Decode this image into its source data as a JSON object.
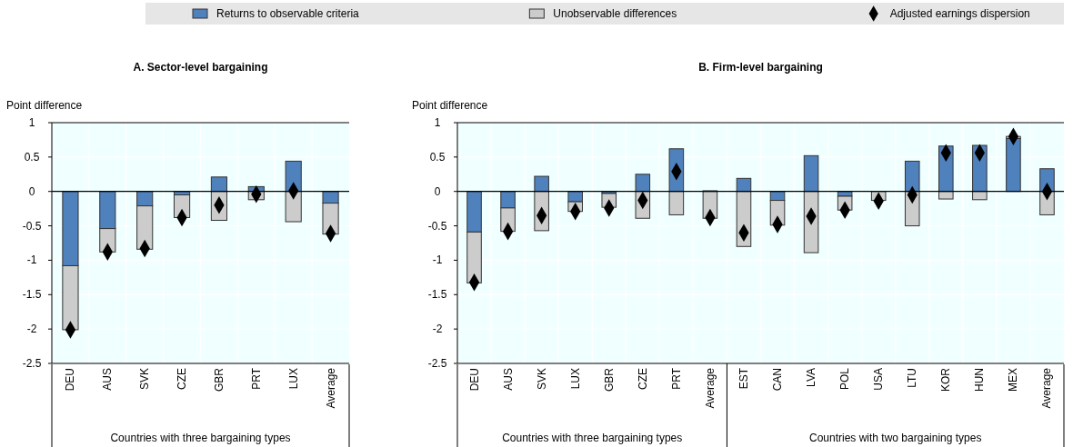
{
  "chart_data": [
    {
      "type": "bar",
      "title": "A. Sector-level bargaining",
      "ylabel": "Point difference",
      "xlabel": "Countries with three bargaining types",
      "stacked": true,
      "grid": true,
      "legend": "top",
      "categories": [
        "DEU",
        "AUS",
        "SVK",
        "CZE",
        "GBR",
        "PRT",
        "LUX",
        "Average"
      ],
      "ylim": [
        -2.5,
        1
      ],
      "yticks": [
        {
          "value": 1,
          "label": "1"
        },
        {
          "value": 0.5,
          "label": "0.5"
        },
        {
          "value": 0,
          "label": "0"
        },
        {
          "value": -0.5,
          "label": "-0.5"
        },
        {
          "value": -1,
          "label": "-1"
        },
        {
          "value": -1.5,
          "label": "-1.5"
        },
        {
          "value": -2,
          "label": "-2"
        },
        {
          "value": -2.5,
          "label": "-2.5"
        }
      ],
      "series": [
        {
          "name": "Returns to observable criteria",
          "color": "#4f81bd",
          "values": [
            -1.08,
            -0.54,
            -0.21,
            -0.05,
            0.21,
            0.07,
            0.44,
            -0.17
          ]
        },
        {
          "name": "Unobservable differences",
          "color": "#cccccc",
          "values": [
            -0.93,
            -0.34,
            -0.63,
            -0.33,
            -0.42,
            -0.12,
            -0.44,
            -0.45
          ]
        },
        {
          "name": "Adjusted earnings dispersion",
          "type": "scatter",
          "marker": "diamond",
          "color": "#000000",
          "values": [
            -2.01,
            -0.88,
            -0.83,
            -0.38,
            -0.2,
            -0.04,
            0.01,
            -0.61
          ]
        }
      ]
    },
    {
      "type": "bar",
      "title": "B. Firm-level bargaining",
      "ylabel": "Point difference",
      "stacked": true,
      "grid": true,
      "annotations": [
        "Countries with three bargaining types",
        "Countries with two bargaining types"
      ],
      "categories": [
        "DEU",
        "AUS",
        "SVK",
        "LUX",
        "GBR",
        "CZE",
        "PRT",
        "Average",
        "EST",
        "CAN",
        "LVA",
        "POL",
        "USA",
        "LTU",
        "KOR",
        "HUN",
        "MEX",
        "Average"
      ],
      "ylim": [
        -2.5,
        1
      ],
      "yticks": [
        {
          "value": 1,
          "label": "1"
        },
        {
          "value": 0.5,
          "label": "0.5"
        },
        {
          "value": 0,
          "label": "0"
        },
        {
          "value": -0.5,
          "label": "-0.5"
        },
        {
          "value": -1,
          "label": "-1"
        },
        {
          "value": -1.5,
          "label": "-1.5"
        },
        {
          "value": -2,
          "label": "-2"
        },
        {
          "value": -2.5,
          "label": "-2.5"
        }
      ],
      "series": [
        {
          "color": "#4f81bd",
          "values": [
            -0.59,
            -0.24,
            0.22,
            -0.15,
            -0.03,
            0.25,
            0.62,
            0.01,
            0.19,
            -0.13,
            0.52,
            -0.07,
            0,
            0.44,
            0.66,
            0.67,
            0.77,
            0.33
          ]
        },
        {
          "color": "#cccccc",
          "values": [
            -0.74,
            -0.34,
            -0.57,
            -0.14,
            -0.2,
            -0.39,
            -0.34,
            -0.39,
            -0.8,
            -0.36,
            -0.89,
            -0.2,
            -0.13,
            -0.5,
            -0.11,
            -0.12,
            0.03,
            -0.34
          ]
        },
        {
          "type": "scatter",
          "marker": "diamond",
          "color": "#000000",
          "values": [
            -1.32,
            -0.58,
            -0.35,
            -0.29,
            -0.24,
            -0.13,
            0.29,
            -0.38,
            -0.6,
            -0.48,
            -0.36,
            -0.27,
            -0.14,
            -0.05,
            0.56,
            0.56,
            0.8,
            0
          ]
        }
      ]
    }
  ]
}
